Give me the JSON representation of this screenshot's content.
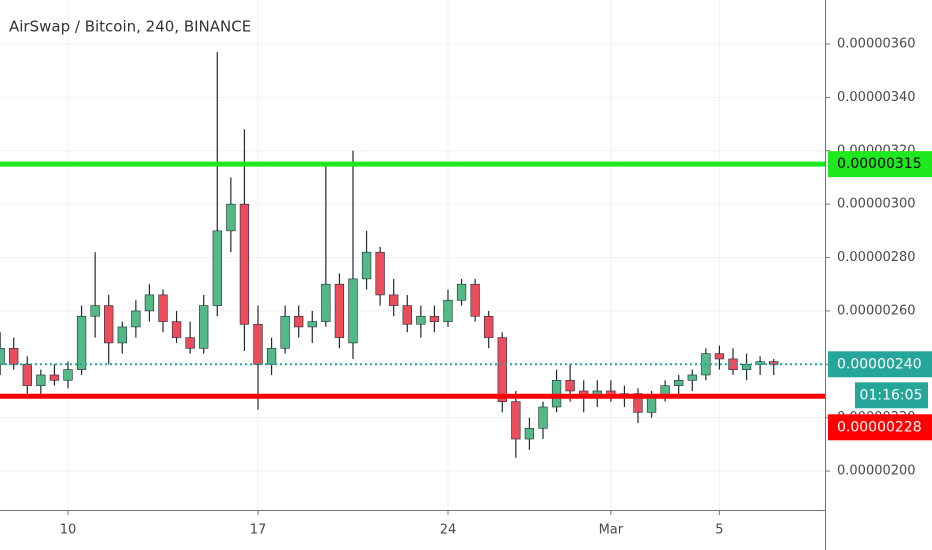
{
  "chart_data": {
    "type": "candlestick",
    "title": "AirSwap / Bitcoin, 240, BINANCE",
    "x": [
      7.5,
      8,
      8.5,
      9,
      9.5,
      10,
      10.5,
      11,
      11.5,
      12,
      12.5,
      13,
      13.5,
      14,
      14.5,
      15,
      15.5,
      16,
      16.5,
      17,
      17.5,
      18,
      18.5,
      19,
      19.5,
      20,
      20.5,
      21,
      21.5,
      22,
      22.5,
      23,
      23.5,
      24,
      24.5,
      25,
      25.5,
      26,
      26.5,
      27,
      27.5,
      28,
      28.5,
      29,
      29.5,
      30,
      30.5,
      31,
      31.5,
      32,
      32.5,
      33,
      33.5,
      34,
      34.5,
      35,
      35.5,
      36
    ],
    "open": [
      2.4e-06,
      2.46e-06,
      2.4e-06,
      2.32e-06,
      2.36e-06,
      2.34e-06,
      2.38e-06,
      2.58e-06,
      2.62e-06,
      2.48e-06,
      2.54e-06,
      2.6e-06,
      2.66e-06,
      2.56e-06,
      2.5e-06,
      2.46e-06,
      2.62e-06,
      2.9e-06,
      3e-06,
      2.55e-06,
      2.4e-06,
      2.46e-06,
      2.58e-06,
      2.54e-06,
      2.56e-06,
      2.7e-06,
      2.48e-06,
      2.72e-06,
      2.82e-06,
      2.66e-06,
      2.62e-06,
      2.55e-06,
      2.58e-06,
      2.56e-06,
      2.64e-06,
      2.7e-06,
      2.58e-06,
      2.5e-06,
      2.26e-06,
      2.12e-06,
      2.16e-06,
      2.24e-06,
      2.34e-06,
      2.3e-06,
      2.28e-06,
      2.3e-06,
      2.28e-06,
      2.29e-06,
      2.22e-06,
      2.28e-06,
      2.32e-06,
      2.34e-06,
      2.36e-06,
      2.44e-06,
      2.42e-06,
      2.38e-06,
      2.4e-06,
      2.41e-06
    ],
    "high": [
      2.52e-06,
      2.5e-06,
      2.43e-06,
      2.38e-06,
      2.4e-06,
      2.41e-06,
      2.62e-06,
      2.82e-06,
      2.66e-06,
      2.56e-06,
      2.64e-06,
      2.7e-06,
      2.68e-06,
      2.6e-06,
      2.56e-06,
      2.66e-06,
      3.57e-06,
      3.1e-06,
      3.28e-06,
      2.62e-06,
      2.5e-06,
      2.62e-06,
      2.62e-06,
      2.6e-06,
      3.15e-06,
      2.74e-06,
      3.2e-06,
      2.9e-06,
      2.84e-06,
      2.72e-06,
      2.66e-06,
      2.62e-06,
      2.62e-06,
      2.68e-06,
      2.72e-06,
      2.72e-06,
      2.6e-06,
      2.52e-06,
      2.3e-06,
      2.2e-06,
      2.26e-06,
      2.38e-06,
      2.4e-06,
      2.34e-06,
      2.34e-06,
      2.34e-06,
      2.32e-06,
      2.31e-06,
      2.3e-06,
      2.34e-06,
      2.36e-06,
      2.38e-06,
      2.46e-06,
      2.47e-06,
      2.46e-06,
      2.44e-06,
      2.43e-06,
      2.42e-06
    ],
    "low": [
      2.36e-06,
      2.38e-06,
      2.29e-06,
      2.28e-06,
      2.32e-06,
      2.31e-06,
      2.36e-06,
      2.5e-06,
      2.4e-06,
      2.44e-06,
      2.5e-06,
      2.56e-06,
      2.52e-06,
      2.48e-06,
      2.44e-06,
      2.44e-06,
      2.58e-06,
      2.82e-06,
      2.45e-06,
      2.23e-06,
      2.36e-06,
      2.44e-06,
      2.5e-06,
      2.48e-06,
      2.54e-06,
      2.46e-06,
      2.42e-06,
      2.68e-06,
      2.62e-06,
      2.58e-06,
      2.52e-06,
      2.5e-06,
      2.52e-06,
      2.54e-06,
      2.62e-06,
      2.56e-06,
      2.46e-06,
      2.22e-06,
      2.05e-06,
      2.08e-06,
      2.12e-06,
      2.22e-06,
      2.26e-06,
      2.22e-06,
      2.24e-06,
      2.26e-06,
      2.24e-06,
      2.18e-06,
      2.2e-06,
      2.26e-06,
      2.28e-06,
      2.3e-06,
      2.34e-06,
      2.38e-06,
      2.36e-06,
      2.34e-06,
      2.36e-06,
      2.36e-06
    ],
    "close": [
      2.46e-06,
      2.4e-06,
      2.32e-06,
      2.36e-06,
      2.34e-06,
      2.38e-06,
      2.58e-06,
      2.62e-06,
      2.48e-06,
      2.54e-06,
      2.6e-06,
      2.66e-06,
      2.56e-06,
      2.5e-06,
      2.46e-06,
      2.62e-06,
      2.9e-06,
      3e-06,
      2.55e-06,
      2.4e-06,
      2.46e-06,
      2.58e-06,
      2.54e-06,
      2.56e-06,
      2.7e-06,
      2.5e-06,
      2.72e-06,
      2.82e-06,
      2.66e-06,
      2.62e-06,
      2.55e-06,
      2.58e-06,
      2.56e-06,
      2.64e-06,
      2.7e-06,
      2.58e-06,
      2.5e-06,
      2.26e-06,
      2.12e-06,
      2.16e-06,
      2.24e-06,
      2.34e-06,
      2.3e-06,
      2.28e-06,
      2.3e-06,
      2.28e-06,
      2.29e-06,
      2.22e-06,
      2.28e-06,
      2.32e-06,
      2.34e-06,
      2.36e-06,
      2.44e-06,
      2.42e-06,
      2.38e-06,
      2.4e-06,
      2.41e-06,
      2.4e-06
    ],
    "up_color": "#53b987",
    "down_color": "#eb4d5c",
    "wick_color": "#1e2a33",
    "xlim": [
      7.495,
      37.89
    ],
    "xticks": [
      {
        "value": 10,
        "label": "10"
      },
      17,
      24,
      {
        "value": 30,
        "label": "Mar"
      },
      {
        "value": 34,
        "label": "5"
      }
    ],
    "ylim": [
      1.854e-06,
      3.765e-06
    ],
    "yticks": [
      {
        "value": 2e-06,
        "label": "0.00000200"
      },
      {
        "value": 2.2e-06,
        "label": "0.00000220"
      },
      {
        "value": 2.4e-06,
        "label": "0.00000240"
      },
      {
        "value": 2.6e-06,
        "label": "0.00000260"
      },
      {
        "value": 2.8e-06,
        "label": "0.00000280"
      },
      {
        "value": 3e-06,
        "label": "0.00000300"
      },
      {
        "value": 3.2e-06,
        "label": "0.00000320"
      },
      {
        "value": 3.4e-06,
        "label": "0.00000340"
      },
      {
        "value": 3.6e-06,
        "label": "0.00000360"
      }
    ],
    "grid": true,
    "hlines": [
      {
        "value": 3.15e-06,
        "color": "#1ee81e",
        "text_color": "#000000",
        "style": "solid"
      },
      {
        "value": 2.4e-06,
        "label": "0.00000240",
        "color": "#26a69a",
        "text_color": "#ffffff",
        "style": "dotted",
        "countdown": "01:16:05"
      },
      {
        "value": 2.28e-06,
        "color": "#ff0000",
        "text_color": "#ffffff",
        "style": "solid"
      }
    ]
  }
}
